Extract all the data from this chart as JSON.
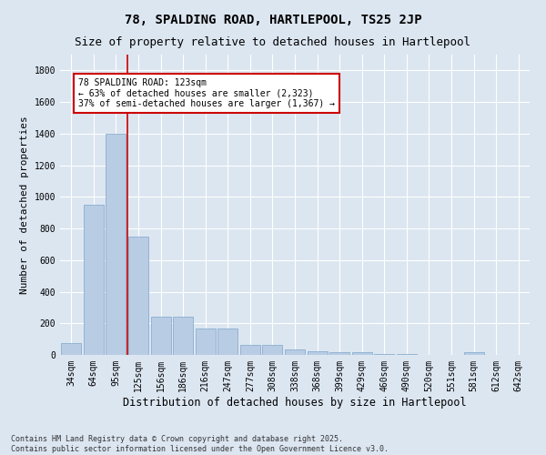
{
  "title_line1": "78, SPALDING ROAD, HARTLEPOOL, TS25 2JP",
  "title_line2": "Size of property relative to detached houses in Hartlepool",
  "xlabel": "Distribution of detached houses by size in Hartlepool",
  "ylabel": "Number of detached properties",
  "categories": [
    "34sqm",
    "64sqm",
    "95sqm",
    "125sqm",
    "156sqm",
    "186sqm",
    "216sqm",
    "247sqm",
    "277sqm",
    "308sqm",
    "338sqm",
    "368sqm",
    "399sqm",
    "429sqm",
    "460sqm",
    "490sqm",
    "520sqm",
    "551sqm",
    "581sqm",
    "612sqm",
    "642sqm"
  ],
  "values": [
    75,
    950,
    1400,
    750,
    240,
    240,
    165,
    165,
    65,
    65,
    35,
    25,
    15,
    15,
    5,
    5,
    0,
    0,
    20,
    0,
    0
  ],
  "bar_color": "#b8cce4",
  "bar_edge_color": "#7da7c9",
  "line_color": "#cc0000",
  "annotation_text": "78 SPALDING ROAD: 123sqm\n← 63% of detached houses are smaller (2,323)\n37% of semi-detached houses are larger (1,367) →",
  "annotation_box_color": "#ffffff",
  "annotation_border_color": "#cc0000",
  "ylim": [
    0,
    1900
  ],
  "yticks": [
    0,
    200,
    400,
    600,
    800,
    1000,
    1200,
    1400,
    1600,
    1800
  ],
  "background_color": "#dce6f1",
  "grid_color": "#ffffff",
  "footer_text": "Contains HM Land Registry data © Crown copyright and database right 2025.\nContains public sector information licensed under the Open Government Licence v3.0.",
  "title_fontsize": 10,
  "subtitle_fontsize": 9,
  "tick_fontsize": 7,
  "ylabel_fontsize": 8,
  "xlabel_fontsize": 8.5,
  "annotation_fontsize": 7,
  "footer_fontsize": 6
}
